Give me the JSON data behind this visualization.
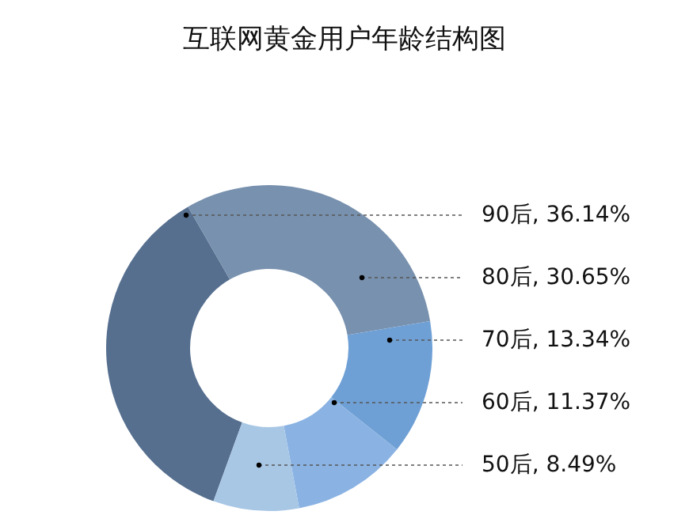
{
  "chart_data": {
    "type": "donut",
    "title": "互联网黄金用户年龄结构图",
    "categories": [
      "90后",
      "80后",
      "70后",
      "60后",
      "50后"
    ],
    "values": [
      36.14,
      30.65,
      13.34,
      11.37,
      8.49
    ],
    "value_labels": [
      "36.14%",
      "30.65%",
      "13.34%",
      "11.37%",
      "8.49%"
    ],
    "colors": [
      "#566f8f",
      "#7891ae",
      "#6fa0d5",
      "#8ab3e3",
      "#a8c7e5"
    ]
  }
}
